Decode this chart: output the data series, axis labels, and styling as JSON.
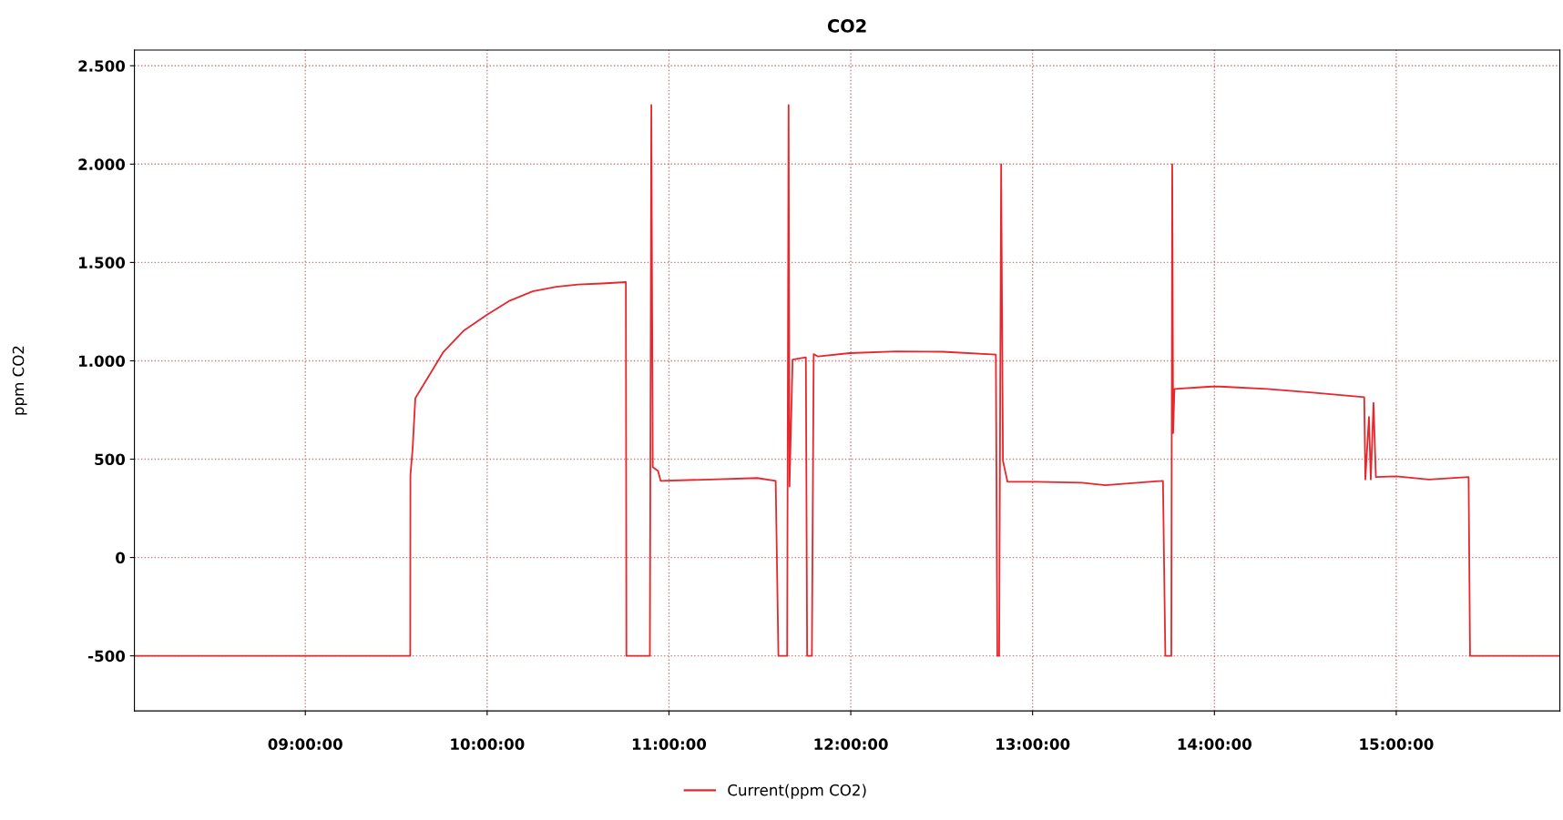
{
  "chart_data": {
    "type": "line",
    "title": "CO2",
    "ylabel": "ppm CO2",
    "xlim": [
      8.06,
      15.9
    ],
    "xticks": [
      {
        "value": 9,
        "label": "09:00:00"
      },
      {
        "value": 10,
        "label": "10:00:00"
      },
      {
        "value": 11,
        "label": "11:00:00"
      },
      {
        "value": 12,
        "label": "12:00:00"
      },
      {
        "value": 13,
        "label": "13:00:00"
      },
      {
        "value": 14,
        "label": "14:00:00"
      },
      {
        "value": 15,
        "label": "15:00:00"
      }
    ],
    "ylim": [
      -780,
      2580
    ],
    "yticks": [
      {
        "value": -500,
        "label": "-500"
      },
      {
        "value": 0,
        "label": "0"
      },
      {
        "value": 500,
        "label": "500"
      },
      {
        "value": 1000,
        "label": "1.000"
      },
      {
        "value": 1500,
        "label": "1.500"
      },
      {
        "value": 2000,
        "label": "2.000"
      },
      {
        "value": 2500,
        "label": "2.500"
      }
    ],
    "grid": true,
    "legend": "bottom",
    "marker": "none",
    "line_style": "solid",
    "series": [
      {
        "name": "Current(ppm CO2)",
        "color": "#e8262b",
        "x": [
          8.06,
          9.46,
          9.577,
          9.578,
          9.59,
          9.605,
          9.66,
          9.76,
          9.87,
          10.0,
          10.125,
          10.25,
          10.38,
          10.5,
          10.63,
          10.763,
          10.766,
          10.895,
          10.903,
          10.911,
          10.94,
          10.954,
          11.23,
          11.485,
          11.587,
          11.602,
          11.65,
          11.658,
          11.663,
          11.68,
          11.753,
          11.76,
          11.786,
          11.796,
          11.82,
          11.995,
          12.25,
          12.505,
          12.798,
          12.806,
          12.816,
          12.827,
          12.837,
          12.862,
          13.015,
          13.27,
          13.4,
          13.717,
          13.73,
          13.763,
          13.768,
          13.773,
          13.78,
          13.985,
          14.03,
          14.29,
          14.54,
          14.824,
          14.83,
          14.85,
          14.86,
          14.875,
          14.888,
          15.0,
          15.18,
          15.398,
          15.406,
          15.9
        ],
        "values": [
          -500,
          -500,
          -500,
          420,
          550,
          810,
          893,
          1046,
          1152,
          1235,
          1306,
          1353,
          1376,
          1388,
          1393,
          1400,
          -500,
          -500,
          2300,
          460,
          440,
          390,
          397,
          404,
          390,
          -500,
          -500,
          2300,
          361,
          1006,
          1018,
          -500,
          -500,
          1034,
          1022,
          1039,
          1048,
          1046,
          1032,
          -500,
          -500,
          2000,
          491,
          385,
          385,
          380,
          368,
          390,
          -500,
          -500,
          2000,
          633,
          857,
          869,
          869,
          857,
          838,
          815,
          397,
          715,
          397,
          786,
          409,
          413,
          397,
          409,
          -500,
          -500
        ]
      }
    ]
  }
}
